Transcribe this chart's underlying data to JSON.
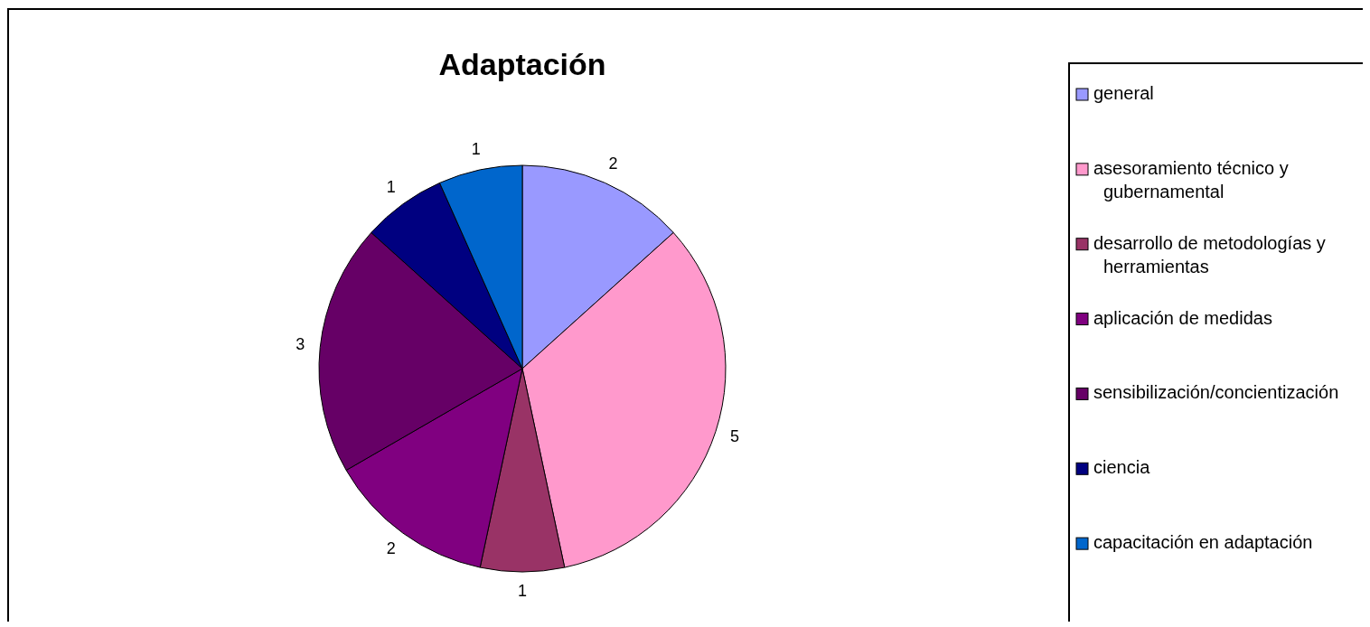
{
  "chart_data": {
    "type": "pie",
    "title": "Adaptación",
    "categories": [
      "general",
      "asesoramiento técnico y gubernamental",
      "desarrollo de metodologías y herramientas",
      "aplicación de medidas",
      "sensibilización/concientización",
      "ciencia",
      "capacitación en adaptación"
    ],
    "values": [
      2,
      5,
      1,
      2,
      3,
      1,
      1
    ],
    "colors": [
      "#9999ff",
      "#ff99cc",
      "#993366",
      "#800080",
      "#660066",
      "#000080",
      "#0066cc"
    ],
    "data_labels": true,
    "legend": "right"
  }
}
